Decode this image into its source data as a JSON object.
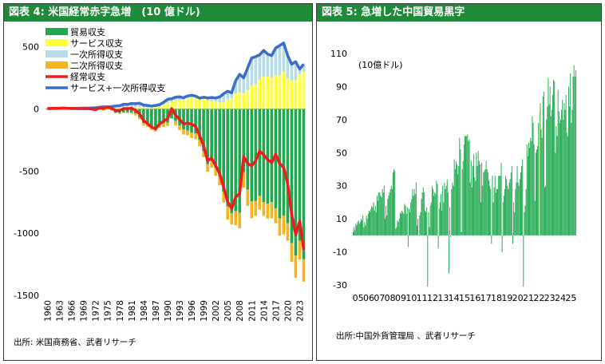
{
  "figure4": {
    "header": "図表 4: 米国経常赤字急増　(10 億ドル)",
    "source": "出所: 米国商務省、武者リサーチ",
    "chart_data": {
      "type": "bar",
      "title": "",
      "yticks": [
        500,
        0,
        -500,
        -1000,
        -1500
      ],
      "ylim": [
        -1500,
        600
      ],
      "xticks": [
        "1960",
        "1963",
        "1966",
        "1969",
        "1972",
        "1975",
        "1978",
        "1981",
        "1984",
        "1987",
        "1990",
        "1993",
        "1996",
        "1999",
        "2002",
        "2005",
        "2008",
        "2011",
        "2014",
        "2017",
        "2020",
        "2023"
      ],
      "legend": [
        {
          "name": "貿易収支",
          "color": "#1fa84f",
          "kind": "bar"
        },
        {
          "name": "サービス収支",
          "color": "#ffff3a",
          "kind": "bar"
        },
        {
          "name": "一次所得収支",
          "color": "#b7dbe9",
          "kind": "bar"
        },
        {
          "name": "二次所得収支",
          "color": "#f5b41e",
          "kind": "bar"
        },
        {
          "name": "経常収支",
          "color": "#ee1c1c",
          "kind": "line"
        },
        {
          "name": "サービス+一次所得収支",
          "color": "#3a6fc4",
          "kind": "line"
        }
      ],
      "years": [
        1960,
        1961,
        1962,
        1963,
        1964,
        1965,
        1966,
        1967,
        1968,
        1969,
        1970,
        1971,
        1972,
        1973,
        1974,
        1975,
        1976,
        1977,
        1978,
        1979,
        1980,
        1981,
        1982,
        1983,
        1984,
        1985,
        1986,
        1987,
        1988,
        1989,
        1990,
        1991,
        1992,
        1993,
        1994,
        1995,
        1996,
        1997,
        1998,
        1999,
        2000,
        2001,
        2002,
        2003,
        2004,
        2005,
        2006,
        2007,
        2008,
        2009,
        2010,
        2011,
        2012,
        2013,
        2014,
        2015,
        2016,
        2017,
        2018,
        2019,
        2020,
        2021,
        2022,
        2023,
        2024
      ],
      "series": [
        {
          "name": "貿易収支",
          "values": [
            5,
            6,
            5,
            5,
            7,
            5,
            4,
            4,
            1,
            1,
            3,
            -2,
            -6,
            1,
            -5,
            9,
            -9,
            -31,
            -34,
            -28,
            -26,
            -28,
            -37,
            -67,
            -113,
            -122,
            -145,
            -160,
            -127,
            -118,
            -111,
            -76,
            -97,
            -133,
            -166,
            -174,
            -191,
            -198,
            -248,
            -338,
            -446,
            -422,
            -475,
            -542,
            -666,
            -784,
            -838,
            -823,
            -835,
            -510,
            -650,
            -744,
            -741,
            -700,
            -750,
            -762,
            -750,
            -800,
            -880,
            -860,
            -920,
            -1080,
            -1180,
            -1060,
            -1210
          ]
        },
        {
          "name": "サービス収支",
          "values": [
            -1,
            -1,
            -1,
            -1,
            -1,
            -2,
            -2,
            -2,
            -1,
            -1,
            -1,
            0,
            1,
            1,
            2,
            3,
            4,
            5,
            5,
            5,
            6,
            11,
            12,
            14,
            11,
            8,
            8,
            16,
            18,
            37,
            49,
            58,
            70,
            73,
            74,
            86,
            90,
            91,
            82,
            81,
            69,
            64,
            61,
            51,
            55,
            75,
            86,
            124,
            132,
            126,
            152,
            190,
            200,
            235,
            260,
            260,
            250,
            270,
            270,
            300,
            250,
            230,
            230,
            280,
            300
          ]
        },
        {
          "name": "一次所得収支",
          "values": [
            3,
            4,
            4,
            5,
            5,
            6,
            6,
            6,
            7,
            7,
            7,
            8,
            8,
            12,
            15,
            12,
            15,
            18,
            21,
            31,
            30,
            33,
            30,
            32,
            20,
            20,
            15,
            12,
            16,
            16,
            28,
            24,
            24,
            24,
            16,
            18,
            20,
            12,
            4,
            13,
            19,
            28,
            27,
            45,
            67,
            68,
            43,
            101,
            146,
            124,
            178,
            220,
            220,
            200,
            210,
            180,
            180,
            220,
            240,
            230,
            180,
            130,
            150,
            40,
            60
          ]
        },
        {
          "name": "二次所得収支",
          "values": [
            -4,
            -4,
            -4,
            -4,
            -4,
            -5,
            -5,
            -5,
            -5,
            -5,
            -6,
            -7,
            -8,
            -7,
            -9,
            -7,
            -5,
            -5,
            -6,
            -6,
            -8,
            -11,
            -16,
            -17,
            -20,
            -22,
            -24,
            -23,
            -25,
            -27,
            -26,
            10,
            -36,
            -39,
            -40,
            -38,
            -43,
            -45,
            -53,
            -50,
            -59,
            -51,
            -64,
            -72,
            -88,
            -106,
            -92,
            -112,
            -125,
            -123,
            -131,
            -135,
            -120,
            -110,
            -110,
            -120,
            -130,
            -120,
            -140,
            -150,
            -140,
            -150,
            -180,
            -150,
            -180
          ]
        },
        {
          "name": "経常収支",
          "values": [
            3,
            5,
            4,
            5,
            7,
            4,
            3,
            3,
            2,
            2,
            3,
            -1,
            -5,
            7,
            3,
            17,
            5,
            -13,
            -14,
            2,
            2,
            5,
            -11,
            -39,
            -94,
            -118,
            -147,
            -161,
            -121,
            -99,
            -79,
            3,
            -51,
            -84,
            -122,
            -114,
            -124,
            -140,
            -215,
            -296,
            -417,
            -397,
            -458,
            -521,
            -632,
            -747,
            -801,
            -710,
            -681,
            -383,
            -441,
            -457,
            -418,
            -339,
            -370,
            -408,
            -432,
            -365,
            -440,
            -472,
            -601,
            -846,
            -1012,
            -905,
            -1134
          ]
        },
        {
          "name": "サービス+一次所得収支",
          "values": [
            2,
            3,
            3,
            4,
            4,
            4,
            4,
            4,
            6,
            6,
            6,
            8,
            9,
            13,
            17,
            15,
            19,
            23,
            26,
            36,
            36,
            44,
            42,
            46,
            31,
            28,
            23,
            28,
            34,
            53,
            77,
            82,
            94,
            97,
            90,
            104,
            110,
            103,
            86,
            94,
            88,
            92,
            88,
            96,
            122,
            143,
            129,
            225,
            278,
            250,
            330,
            410,
            420,
            435,
            470,
            440,
            430,
            490,
            510,
            530,
            430,
            360,
            380,
            320,
            360
          ]
        }
      ]
    }
  },
  "figure5": {
    "header": "図表 5: 急増した中国貿易黒字",
    "unit_label": "(10億ドル)",
    "source": "出所:中国外貨管理局 、武者リサーチ",
    "chart_data": {
      "type": "bar",
      "title": "",
      "yticks": [
        110,
        90,
        70,
        50,
        30,
        10,
        -10,
        -30
      ],
      "ylim": [
        -30,
        110
      ],
      "xticks": [
        "05",
        "06",
        "07",
        "08",
        "09",
        "10",
        "11",
        "12",
        "13",
        "14",
        "15",
        "16",
        "17",
        "18",
        "19",
        "20",
        "21",
        "22",
        "23",
        "24",
        "25"
      ],
      "series": [
        {
          "name": "",
          "color": "#1fa84f",
          "monthly_values": [
            2,
            5,
            3,
            7,
            6,
            8,
            9,
            7,
            8,
            10,
            9,
            12,
            5,
            8,
            6,
            12,
            10,
            13,
            15,
            14,
            16,
            18,
            17,
            20,
            15,
            18,
            14,
            24,
            21,
            26,
            26,
            24,
            23,
            28,
            26,
            30,
            10,
            18,
            12,
            22,
            24,
            26,
            28,
            30,
            28,
            38,
            40,
            39,
            4,
            5,
            9,
            8,
            10,
            14,
            13,
            15,
            14,
            13,
            19,
            18,
            13,
            17,
            -7,
            16,
            14,
            20,
            22,
            28,
            24,
            28,
            25,
            32,
            6,
            10,
            0,
            12,
            14,
            22,
            26,
            29,
            26,
            15,
            14,
            17,
            -31,
            14,
            5,
            18,
            20,
            30,
            28,
            24,
            26,
            25,
            33,
            31,
            -8,
            16,
            20,
            25,
            15,
            30,
            20,
            32,
            28,
            30,
            34,
            26,
            -23,
            17,
            -1,
            28,
            32,
            30,
            46,
            40,
            45,
            43,
            37,
            42,
            59,
            52,
            2,
            40,
            45,
            55,
            60,
            60,
            60,
            61,
            57,
            58,
            32,
            45,
            29,
            42,
            49,
            35,
            33,
            50,
            42,
            51,
            45,
            43,
            20,
            44,
            30,
            38,
            39,
            40,
            45,
            40,
            38,
            33,
            30,
            28,
            -5,
            36,
            20,
            29,
            36,
            26,
            28,
            28,
            36,
            36,
            36,
            44,
            -10,
            20,
            24,
            28,
            36,
            34,
            30,
            28,
            32,
            34,
            38,
            42,
            -5,
            20,
            14,
            28,
            32,
            42,
            32,
            30,
            34,
            38,
            42,
            46,
            -31,
            14,
            18,
            28,
            55,
            48,
            56,
            53,
            59,
            57,
            72,
            68,
            55,
            21,
            50,
            52,
            54,
            68,
            75,
            80,
            64,
            59,
            84,
            87,
            29,
            30,
            70,
            78,
            95,
            79,
            90,
            72,
            76,
            85,
            94,
            93,
            50,
            66,
            60,
            88,
            75,
            68,
            70,
            76,
            82,
            70,
            80,
            76,
            85,
            62,
            60,
            90,
            78,
            98,
            68,
            76,
            96,
            103,
            96,
            100
          ]
        }
      ]
    }
  }
}
